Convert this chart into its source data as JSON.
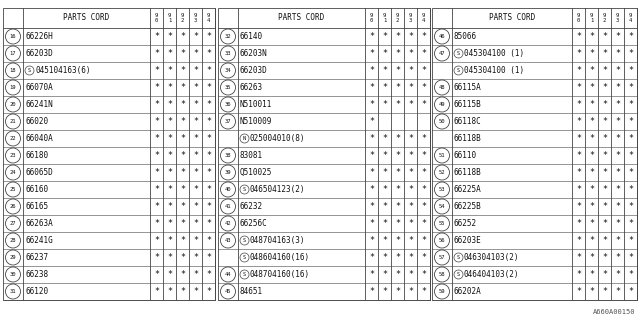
{
  "title": "A660A00150",
  "fig_w": 6.4,
  "fig_h": 3.2,
  "dpi": 100,
  "columns": [
    {
      "rows": [
        {
          "num": "16",
          "sp": false,
          "part": "66226H",
          "s": [
            1,
            1,
            1,
            1,
            1
          ],
          "sub": null
        },
        {
          "num": "17",
          "sp": false,
          "part": "66203D",
          "s": [
            1,
            1,
            1,
            1,
            1
          ],
          "sub": null
        },
        {
          "num": "18",
          "sp": "S",
          "part": "045104163(6)",
          "s": [
            1,
            1,
            1,
            1,
            1
          ],
          "sub": null
        },
        {
          "num": "19",
          "sp": false,
          "part": "66070A",
          "s": [
            1,
            1,
            1,
            1,
            1
          ],
          "sub": null
        },
        {
          "num": "20",
          "sp": false,
          "part": "66241N",
          "s": [
            1,
            1,
            1,
            1,
            1
          ],
          "sub": null
        },
        {
          "num": "21",
          "sp": false,
          "part": "66020",
          "s": [
            1,
            1,
            1,
            1,
            1
          ],
          "sub": null
        },
        {
          "num": "22",
          "sp": false,
          "part": "66040A",
          "s": [
            1,
            1,
            1,
            1,
            1
          ],
          "sub": null
        },
        {
          "num": "23",
          "sp": false,
          "part": "66180",
          "s": [
            1,
            1,
            1,
            1,
            1
          ],
          "sub": null
        },
        {
          "num": "24",
          "sp": false,
          "part": "66065D",
          "s": [
            1,
            1,
            1,
            1,
            1
          ],
          "sub": null
        },
        {
          "num": "25",
          "sp": false,
          "part": "66160",
          "s": [
            1,
            1,
            1,
            1,
            1
          ],
          "sub": null
        },
        {
          "num": "26",
          "sp": false,
          "part": "66165",
          "s": [
            1,
            1,
            1,
            1,
            1
          ],
          "sub": null
        },
        {
          "num": "27",
          "sp": false,
          "part": "66263A",
          "s": [
            1,
            1,
            1,
            1,
            1
          ],
          "sub": null
        },
        {
          "num": "28",
          "sp": false,
          "part": "66241G",
          "s": [
            1,
            1,
            1,
            1,
            1
          ],
          "sub": null
        },
        {
          "num": "29",
          "sp": false,
          "part": "66237",
          "s": [
            1,
            1,
            1,
            1,
            1
          ],
          "sub": null
        },
        {
          "num": "30",
          "sp": false,
          "part": "66238",
          "s": [
            1,
            1,
            1,
            1,
            1
          ],
          "sub": null
        },
        {
          "num": "31",
          "sp": false,
          "part": "66120",
          "s": [
            1,
            1,
            1,
            1,
            1
          ],
          "sub": null
        }
      ]
    },
    {
      "rows": [
        {
          "num": "32",
          "sp": false,
          "part": "66140",
          "s": [
            1,
            1,
            1,
            1,
            1
          ],
          "sub": null
        },
        {
          "num": "33",
          "sp": false,
          "part": "66203N",
          "s": [
            1,
            1,
            1,
            1,
            1
          ],
          "sub": null
        },
        {
          "num": "34",
          "sp": false,
          "part": "66203D",
          "s": [
            1,
            1,
            1,
            1,
            1
          ],
          "sub": null
        },
        {
          "num": "35",
          "sp": false,
          "part": "66263",
          "s": [
            1,
            1,
            1,
            1,
            1
          ],
          "sub": null
        },
        {
          "num": "36",
          "sp": false,
          "part": "N510011",
          "s": [
            1,
            1,
            1,
            1,
            1
          ],
          "sub": null
        },
        {
          "num": "37",
          "sp": false,
          "part": "N510009",
          "s": [
            1,
            0,
            0,
            0,
            0
          ],
          "sub": {
            "sp": "N",
            "part": "025004010(8)",
            "s": [
              1,
              1,
              1,
              1,
              1
            ]
          }
        },
        {
          "num": "38",
          "sp": false,
          "part": "83081",
          "s": [
            1,
            1,
            1,
            1,
            1
          ],
          "sub": null
        },
        {
          "num": "39",
          "sp": false,
          "part": "Q510025",
          "s": [
            1,
            1,
            1,
            1,
            1
          ],
          "sub": null
        },
        {
          "num": "40",
          "sp": "S",
          "part": "046504123(2)",
          "s": [
            1,
            1,
            1,
            1,
            1
          ],
          "sub": null
        },
        {
          "num": "41",
          "sp": false,
          "part": "66232",
          "s": [
            1,
            1,
            1,
            1,
            1
          ],
          "sub": null
        },
        {
          "num": "42",
          "sp": false,
          "part": "66256C",
          "s": [
            1,
            1,
            1,
            1,
            1
          ],
          "sub": null
        },
        {
          "num": "43",
          "sp": "S",
          "part": "048704163(3)",
          "s": [
            1,
            1,
            1,
            1,
            1
          ],
          "sub": {
            "sp": "S",
            "part": "048604160(16)",
            "s": [
              1,
              1,
              1,
              1,
              1
            ]
          }
        },
        {
          "num": "44",
          "sp": "S",
          "part": "048704160(16)",
          "s": [
            1,
            1,
            1,
            1,
            1
          ],
          "sub": null
        },
        {
          "num": "45",
          "sp": false,
          "part": "84651",
          "s": [
            1,
            1,
            1,
            1,
            1
          ],
          "sub": null
        }
      ]
    },
    {
      "rows": [
        {
          "num": "46",
          "sp": false,
          "part": "85066",
          "s": [
            1,
            1,
            1,
            1,
            1
          ],
          "sub": null
        },
        {
          "num": "47",
          "sp": "S",
          "part": "045304100 (1)",
          "s": [
            1,
            1,
            1,
            1,
            1
          ],
          "sub": {
            "sp": "S",
            "part": "045304100 (1)",
            "s": [
              1,
              1,
              1,
              1,
              1
            ]
          }
        },
        {
          "num": "48",
          "sp": false,
          "part": "66115A",
          "s": [
            1,
            1,
            1,
            1,
            1
          ],
          "sub": null
        },
        {
          "num": "49",
          "sp": false,
          "part": "66115B",
          "s": [
            1,
            1,
            1,
            1,
            1
          ],
          "sub": null
        },
        {
          "num": "50",
          "sp": false,
          "part": "66118C",
          "s": [
            1,
            1,
            1,
            1,
            1
          ],
          "sub": {
            "sp": false,
            "part": "66118B",
            "s": [
              1,
              1,
              1,
              1,
              1
            ]
          }
        },
        {
          "num": "51",
          "sp": false,
          "part": "66110",
          "s": [
            1,
            1,
            1,
            1,
            1
          ],
          "sub": null
        },
        {
          "num": "52",
          "sp": false,
          "part": "66118B",
          "s": [
            1,
            1,
            1,
            1,
            1
          ],
          "sub": null
        },
        {
          "num": "53",
          "sp": false,
          "part": "66225A",
          "s": [
            1,
            1,
            1,
            1,
            1
          ],
          "sub": null
        },
        {
          "num": "54",
          "sp": false,
          "part": "66225B",
          "s": [
            1,
            1,
            1,
            1,
            1
          ],
          "sub": null
        },
        {
          "num": "55",
          "sp": false,
          "part": "66252",
          "s": [
            1,
            1,
            1,
            1,
            1
          ],
          "sub": null
        },
        {
          "num": "56",
          "sp": false,
          "part": "66203E",
          "s": [
            1,
            1,
            1,
            1,
            1
          ],
          "sub": null
        },
        {
          "num": "57",
          "sp": "S",
          "part": "046304103(2)",
          "s": [
            1,
            1,
            1,
            1,
            1
          ],
          "sub": null
        },
        {
          "num": "58",
          "sp": "S",
          "part": "046404103(2)",
          "s": [
            1,
            1,
            1,
            1,
            1
          ],
          "sub": null
        },
        {
          "num": "59",
          "sp": false,
          "part": "66202A",
          "s": [
            1,
            1,
            1,
            1,
            1
          ],
          "sub": null
        }
      ]
    }
  ]
}
